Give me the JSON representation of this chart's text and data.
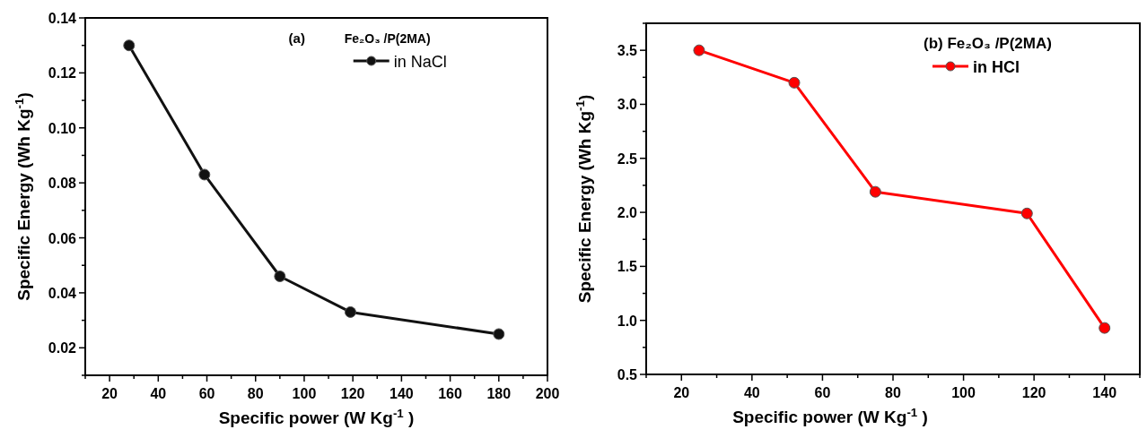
{
  "chart_data": [
    {
      "type": "line",
      "xlabel": "Specific power (W Kg$^{-1}$ )",
      "ylabel": "Specific Energy (Wh Kg$^{-1}$)",
      "legend_title": "Fe₂O₃ /P(2MA)",
      "annotations": [
        "(a)"
      ],
      "legend": "top right",
      "marker": "circle",
      "line_style": "solid",
      "grid": false,
      "xlim": [
        10,
        200
      ],
      "ylim": [
        0.01,
        0.14
      ],
      "xticks": [
        {
          "value": 10,
          "label": null
        },
        20,
        {
          "value": 30,
          "label": null
        },
        40,
        {
          "value": 50,
          "label": null
        },
        60,
        {
          "value": 70,
          "label": null
        },
        80,
        {
          "value": 90,
          "label": null
        },
        100,
        {
          "value": 110,
          "label": null
        },
        120,
        {
          "value": 130,
          "label": null
        },
        140,
        {
          "value": 150,
          "label": null
        },
        160,
        {
          "value": 170,
          "label": null
        },
        180,
        {
          "value": 190,
          "label": null
        },
        200
      ],
      "yticks": [
        {
          "value": 0.01,
          "label": null
        },
        0.02,
        {
          "value": 0.03,
          "label": null
        },
        0.04,
        {
          "value": 0.05,
          "label": null
        },
        0.06,
        {
          "value": 0.07,
          "label": null
        },
        0.08,
        {
          "value": 0.09,
          "label": null
        },
        {
          "value": 0.1,
          "label": "0.10"
        },
        {
          "value": 0.11,
          "label": null
        },
        0.12,
        {
          "value": 0.13,
          "label": null
        },
        0.14
      ],
      "x": [
        28,
        59,
        90,
        119,
        180
      ],
      "series": [
        {
          "name": "in NaCl",
          "color": "#111111",
          "values": [
            0.13,
            0.083,
            0.046,
            0.033,
            0.025
          ]
        }
      ]
    },
    {
      "type": "line",
      "xlabel": "Specific power (W Kg$^{-1}$ )",
      "ylabel": "Specific Energy (Wh Kg$^{-1}$)",
      "legend_title": "(b) Fe₂O₃ /P(2MA)",
      "legend": "top right",
      "marker": "circle",
      "line_style": "solid",
      "grid": false,
      "xlim": [
        10,
        150
      ],
      "ylim": [
        0.5,
        3.75
      ],
      "xticks": [
        {
          "value": 10,
          "label": null
        },
        20,
        {
          "value": 30,
          "label": null
        },
        40,
        {
          "value": 50,
          "label": null
        },
        60,
        {
          "value": 70,
          "label": null
        },
        80,
        {
          "value": 90,
          "label": null
        },
        100,
        {
          "value": 110,
          "label": null
        },
        120,
        {
          "value": 130,
          "label": null
        },
        140,
        {
          "value": 150,
          "label": null
        }
      ],
      "yticks": [
        0.5,
        {
          "value": 0.75,
          "label": null
        },
        {
          "value": 1,
          "label": "1.0"
        },
        {
          "value": 1.25,
          "label": null
        },
        1.5,
        {
          "value": 1.75,
          "label": null
        },
        {
          "value": 2,
          "label": "2.0"
        },
        {
          "value": 2.25,
          "label": null
        },
        2.5,
        {
          "value": 2.75,
          "label": null
        },
        {
          "value": 3,
          "label": "3.0"
        },
        {
          "value": 3.25,
          "label": null
        },
        3.5,
        {
          "value": 3.75,
          "label": null
        }
      ],
      "x": [
        25,
        52,
        75,
        118,
        140
      ],
      "series": [
        {
          "name": "in HCl",
          "color": "#ff0000",
          "values": [
            3.5,
            3.2,
            2.19,
            1.99,
            0.93
          ]
        }
      ]
    }
  ]
}
